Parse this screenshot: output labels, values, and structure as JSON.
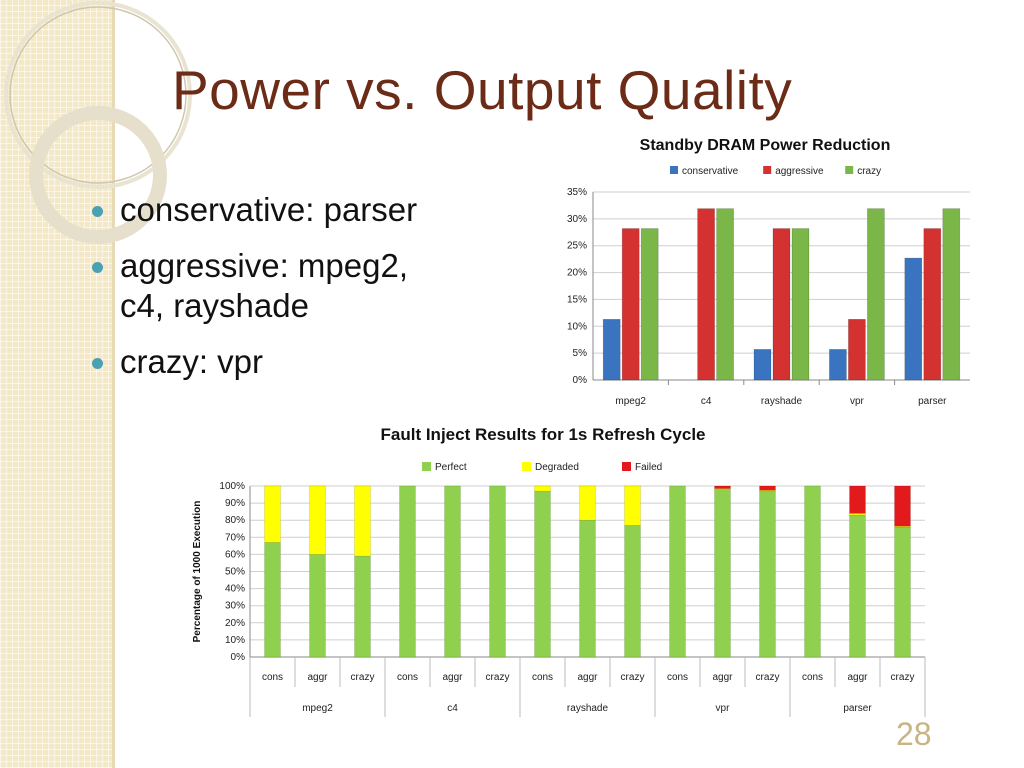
{
  "slide": {
    "title": "Power vs. Output Quality",
    "page_number": "28",
    "bullets": [
      [
        "conservative: parser"
      ],
      [
        "aggressive: mpeg2,",
        "c4, rayshade"
      ],
      [
        "crazy: vpr"
      ]
    ]
  },
  "colors": {
    "title": "#6b2b16",
    "bullet": "#4aa0b5",
    "conservative": "#3a74c1",
    "aggressive": "#d43131",
    "crazy": "#7ab648",
    "perfect": "#8fd14f",
    "degraded": "#ffff00",
    "failed": "#e31a1c"
  },
  "chart_data": [
    {
      "type": "bar",
      "title": "Standby DRAM Power Reduction",
      "categories": [
        "mpeg2",
        "c4",
        "rayshade",
        "vpr",
        "parser"
      ],
      "series": [
        {
          "name": "conservative",
          "values": [
            11.3,
            0,
            5.7,
            5.7,
            22.7
          ]
        },
        {
          "name": "aggressive",
          "values": [
            28.2,
            31.9,
            28.2,
            11.3,
            28.2
          ]
        },
        {
          "name": "crazy",
          "values": [
            28.2,
            31.9,
            28.2,
            31.9,
            31.9
          ]
        }
      ],
      "ylim": [
        0,
        35
      ],
      "yticks": [
        "0%",
        "5%",
        "10%",
        "15%",
        "20%",
        "25%",
        "30%",
        "35%"
      ],
      "legend": "top",
      "grid": true
    },
    {
      "type": "bar",
      "stacked": true,
      "title": "Fault Inject Results for 1s Refresh Cycle",
      "ylabel": "Percentage of 1000 Execution",
      "groups": [
        "mpeg2",
        "c4",
        "rayshade",
        "vpr",
        "parser"
      ],
      "subcategories": [
        "cons",
        "aggr",
        "crazy"
      ],
      "series": [
        {
          "name": "Perfect",
          "values": [
            67,
            60,
            59,
            100,
            100,
            100,
            97,
            80,
            77,
            100,
            98,
            97,
            100,
            83,
            76
          ]
        },
        {
          "name": "Degraded",
          "values": [
            33,
            40,
            41,
            0,
            0,
            0,
            3,
            20,
            23,
            0,
            0.5,
            0.5,
            0,
            1,
            0.5
          ]
        },
        {
          "name": "Failed",
          "values": [
            0,
            0,
            0,
            0,
            0,
            0,
            0,
            0,
            0,
            0,
            1.5,
            2.5,
            0,
            16,
            23.5
          ]
        }
      ],
      "ylim": [
        0,
        100
      ],
      "yticks": [
        "0%",
        "10%",
        "20%",
        "30%",
        "40%",
        "50%",
        "60%",
        "70%",
        "80%",
        "90%",
        "100%"
      ],
      "legend": "top",
      "grid": true
    }
  ]
}
